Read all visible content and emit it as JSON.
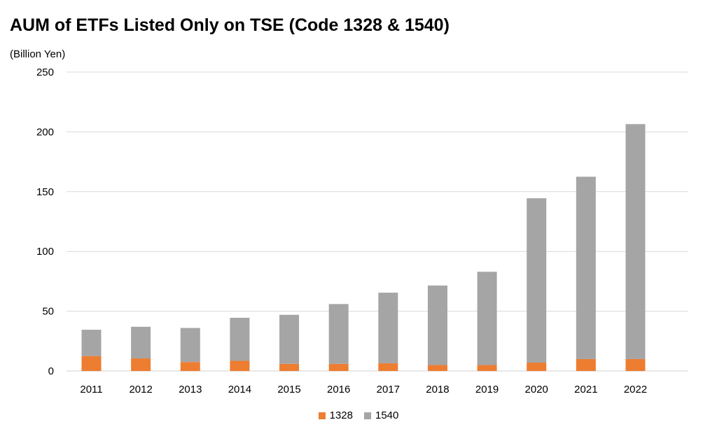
{
  "chart_data": {
    "type": "bar",
    "stacked": true,
    "title": "AUM of ETFs Listed Only on TSE (Code 1328 & 1540)",
    "ylabel": "(Billion Yen)",
    "xlabel": "",
    "categories": [
      "2011",
      "2012",
      "2013",
      "2014",
      "2015",
      "2016",
      "2017",
      "2018",
      "2019",
      "2020",
      "2021",
      "2022"
    ],
    "series": [
      {
        "name": "1328",
        "color": "#ED7D31",
        "values": [
          12.5,
          10.5,
          7.5,
          8.5,
          6,
          6,
          6.5,
          5,
          5,
          7,
          10,
          10
        ]
      },
      {
        "name": "1540",
        "color": "#A5A5A5",
        "values": [
          22,
          26.5,
          28.5,
          36,
          41,
          50,
          59,
          66.5,
          78,
          137.5,
          152.5,
          196.5
        ]
      }
    ],
    "ylim": [
      0,
      250
    ],
    "yticks": [
      0,
      50,
      100,
      150,
      200,
      250
    ],
    "grid": true,
    "legend_position": "bottom"
  }
}
